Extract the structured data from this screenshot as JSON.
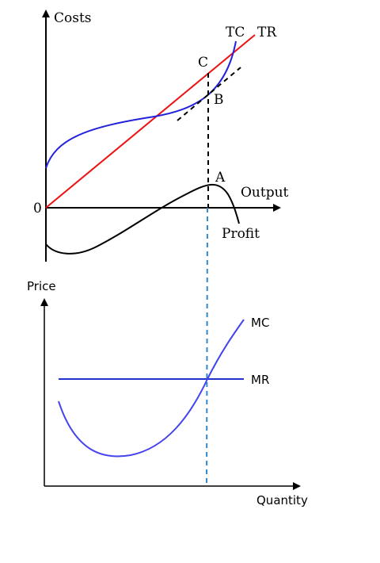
{
  "top_panel": {
    "y_axis_label": "Costs",
    "x_axis_label": "Output",
    "origin_label": "0",
    "curves": {
      "tc_label": "TC",
      "tr_label": "TR",
      "profit_label": "Profit"
    },
    "points": {
      "c_label": "C",
      "b_label": "B",
      "a_label": "A"
    },
    "colors": {
      "tc": "#2222dd",
      "tr": "#ee1111",
      "profit": "#000000",
      "tangent": "#000000",
      "vertical_guide": "#000000"
    }
  },
  "bottom_panel": {
    "y_axis_label": "Price",
    "x_axis_label": "Quantity",
    "curves": {
      "mc_label": "MC",
      "mr_label": "MR"
    },
    "colors": {
      "mc": "#4444ee",
      "mr": "#2233cc",
      "vertical_guide": "#3388cc"
    }
  }
}
